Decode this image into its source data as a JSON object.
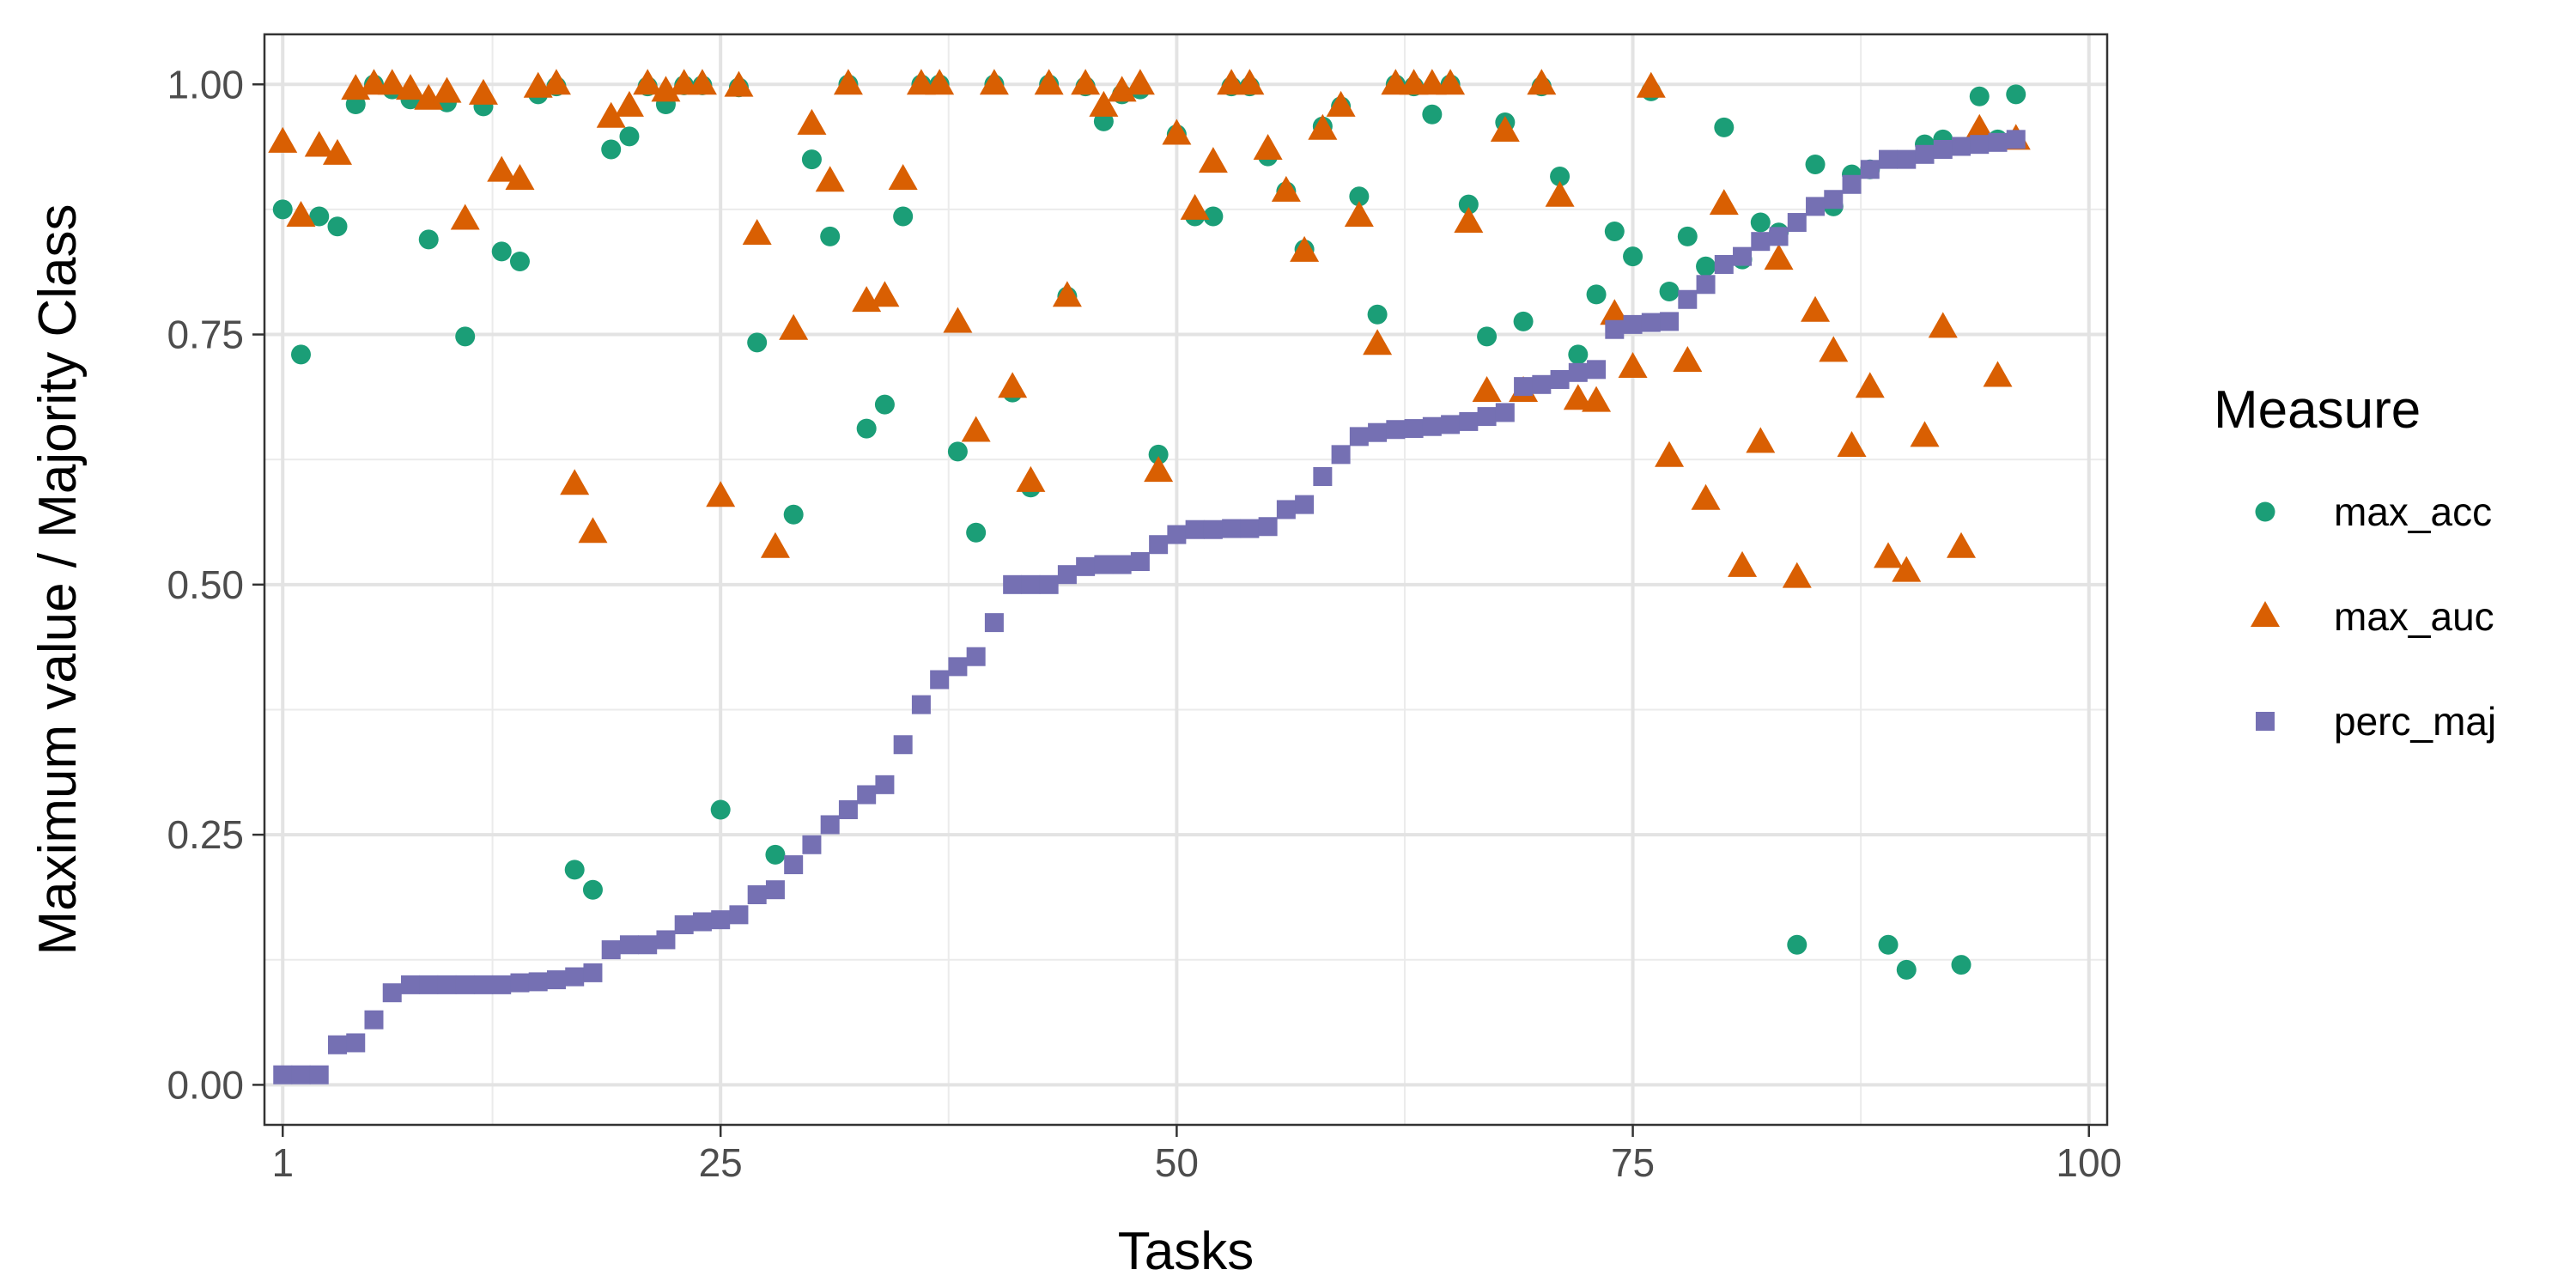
{
  "chart_data": {
    "type": "scatter",
    "xlabel": "Tasks",
    "ylabel": "Maximum value / Majority Class",
    "xlim": [
      0,
      101
    ],
    "ylim": [
      -0.04,
      1.05
    ],
    "x_ticks": [
      1,
      25,
      50,
      75,
      100
    ],
    "x_minor": [
      12.5,
      37.5,
      62.5,
      87.5
    ],
    "y_ticks": [
      0.0,
      0.25,
      0.5,
      0.75,
      1.0
    ],
    "y_tick_labels": [
      "0.00",
      "0.25",
      "0.50",
      "0.75",
      "1.00"
    ],
    "y_minor": [
      0.125,
      0.375,
      0.625,
      0.875
    ],
    "grid": true,
    "legend": {
      "title": "Measure",
      "position": "right"
    },
    "series": [
      {
        "name": "max_acc",
        "marker": "circle",
        "color": "#1b9e77",
        "x": [
          1,
          2,
          3,
          4,
          5,
          6,
          7,
          8,
          9,
          10,
          11,
          12,
          13,
          14,
          15,
          16,
          17,
          18,
          19,
          20,
          21,
          22,
          23,
          24,
          25,
          26,
          27,
          28,
          29,
          30,
          31,
          32,
          33,
          34,
          35,
          36,
          37,
          38,
          39,
          40,
          41,
          42,
          43,
          44,
          45,
          46,
          47,
          48,
          49,
          50,
          51,
          52,
          53,
          54,
          55,
          56,
          57,
          58,
          59,
          60,
          61,
          62,
          63,
          64,
          65,
          66,
          67,
          68,
          69,
          70,
          71,
          72,
          73,
          74,
          75,
          76,
          77,
          78,
          79,
          80,
          81,
          82,
          83,
          84,
          85,
          86,
          87,
          88,
          89,
          90,
          91,
          92,
          93,
          94,
          95,
          96
        ],
        "y": [
          0.875,
          0.73,
          0.868,
          0.858,
          0.98,
          1.0,
          0.995,
          0.985,
          0.845,
          0.982,
          0.748,
          0.978,
          0.833,
          0.823,
          0.99,
          0.998,
          0.215,
          0.195,
          0.935,
          0.948,
          0.998,
          0.98,
          0.999,
          0.999,
          0.275,
          0.997,
          0.742,
          0.23,
          0.57,
          0.925,
          0.848,
          1.0,
          0.656,
          0.68,
          0.868,
          1.0,
          1.0,
          0.633,
          0.552,
          1.0,
          0.692,
          0.597,
          1.0,
          0.788,
          0.998,
          0.963,
          0.99,
          0.995,
          0.63,
          0.95,
          0.868,
          0.868,
          0.998,
          0.998,
          0.928,
          0.893,
          0.835,
          0.958,
          0.978,
          0.888,
          0.77,
          1.0,
          0.998,
          0.97,
          1.0,
          0.88,
          0.748,
          0.962,
          0.763,
          0.998,
          0.908,
          0.73,
          0.79,
          0.853,
          0.828,
          0.993,
          0.793,
          0.848,
          0.818,
          0.957,
          0.825,
          0.862,
          0.852,
          0.14,
          0.92,
          0.878,
          0.91,
          0.915,
          0.14,
          0.115,
          0.94,
          0.945,
          0.12,
          0.988,
          0.945,
          0.99
        ]
      },
      {
        "name": "max_auc",
        "marker": "triangle",
        "color": "#d95f02",
        "x": [
          1,
          2,
          3,
          4,
          5,
          6,
          7,
          8,
          9,
          10,
          11,
          12,
          13,
          14,
          15,
          16,
          17,
          18,
          19,
          20,
          21,
          22,
          23,
          24,
          25,
          26,
          27,
          28,
          29,
          30,
          31,
          32,
          33,
          34,
          35,
          36,
          37,
          38,
          39,
          40,
          41,
          42,
          43,
          44,
          45,
          46,
          47,
          48,
          49,
          50,
          51,
          52,
          53,
          54,
          55,
          56,
          57,
          58,
          59,
          60,
          61,
          62,
          63,
          64,
          65,
          66,
          67,
          68,
          69,
          70,
          71,
          72,
          73,
          74,
          75,
          76,
          77,
          78,
          79,
          80,
          81,
          82,
          83,
          84,
          85,
          86,
          87,
          88,
          89,
          90,
          91,
          92,
          93,
          94,
          95,
          96
        ],
        "y": [
          0.942,
          0.868,
          0.938,
          0.93,
          0.995,
          1.0,
          1.0,
          0.995,
          0.985,
          0.992,
          0.865,
          0.99,
          0.913,
          0.905,
          0.997,
          1.0,
          0.6,
          0.552,
          0.967,
          0.978,
          1.0,
          0.993,
          1.0,
          1.0,
          0.588,
          0.998,
          0.85,
          0.537,
          0.755,
          0.96,
          0.903,
          1.0,
          0.783,
          0.788,
          0.905,
          1.0,
          1.0,
          0.762,
          0.653,
          1.0,
          0.697,
          0.603,
          1.0,
          0.788,
          1.0,
          0.978,
          0.993,
          1.0,
          0.613,
          0.95,
          0.875,
          0.922,
          1.0,
          1.0,
          0.935,
          0.893,
          0.833,
          0.955,
          0.978,
          0.868,
          0.74,
          1.0,
          1.0,
          1.0,
          1.0,
          0.862,
          0.693,
          0.953,
          0.693,
          1.0,
          0.888,
          0.685,
          0.683,
          0.77,
          0.717,
          0.997,
          0.628,
          0.723,
          0.585,
          0.88,
          0.518,
          0.642,
          0.825,
          0.507,
          0.773,
          0.733,
          0.638,
          0.697,
          0.527,
          0.513,
          0.648,
          0.757,
          0.537,
          0.955,
          0.708,
          0.945
        ]
      },
      {
        "name": "perc_maj",
        "marker": "square",
        "color": "#7570b3",
        "x": [
          1,
          2,
          3,
          4,
          5,
          6,
          7,
          8,
          9,
          10,
          11,
          12,
          13,
          14,
          15,
          16,
          17,
          18,
          19,
          20,
          21,
          22,
          23,
          24,
          25,
          26,
          27,
          28,
          29,
          30,
          31,
          32,
          33,
          34,
          35,
          36,
          37,
          38,
          39,
          40,
          41,
          42,
          43,
          44,
          45,
          46,
          47,
          48,
          49,
          50,
          51,
          52,
          53,
          54,
          55,
          56,
          57,
          58,
          59,
          60,
          61,
          62,
          63,
          64,
          65,
          66,
          67,
          68,
          69,
          70,
          71,
          72,
          73,
          74,
          75,
          76,
          77,
          78,
          79,
          80,
          81,
          82,
          83,
          84,
          85,
          86,
          87,
          88,
          89,
          90,
          91,
          92,
          93,
          94,
          95,
          96
        ],
        "y": [
          0.01,
          0.01,
          0.01,
          0.04,
          0.042,
          0.065,
          0.092,
          0.1,
          0.1,
          0.1,
          0.1,
          0.1,
          0.1,
          0.102,
          0.103,
          0.105,
          0.108,
          0.112,
          0.135,
          0.14,
          0.14,
          0.145,
          0.16,
          0.163,
          0.165,
          0.17,
          0.19,
          0.195,
          0.22,
          0.24,
          0.26,
          0.275,
          0.29,
          0.3,
          0.34,
          0.38,
          0.405,
          0.418,
          0.428,
          0.462,
          0.5,
          0.5,
          0.5,
          0.51,
          0.518,
          0.52,
          0.52,
          0.523,
          0.54,
          0.55,
          0.555,
          0.555,
          0.556,
          0.556,
          0.558,
          0.575,
          0.58,
          0.608,
          0.63,
          0.648,
          0.652,
          0.655,
          0.656,
          0.658,
          0.66,
          0.663,
          0.668,
          0.672,
          0.698,
          0.7,
          0.705,
          0.712,
          0.715,
          0.755,
          0.76,
          0.762,
          0.763,
          0.785,
          0.8,
          0.82,
          0.828,
          0.843,
          0.848,
          0.862,
          0.878,
          0.885,
          0.9,
          0.915,
          0.925,
          0.925,
          0.93,
          0.935,
          0.938,
          0.94,
          0.942,
          0.945
        ]
      }
    ]
  }
}
